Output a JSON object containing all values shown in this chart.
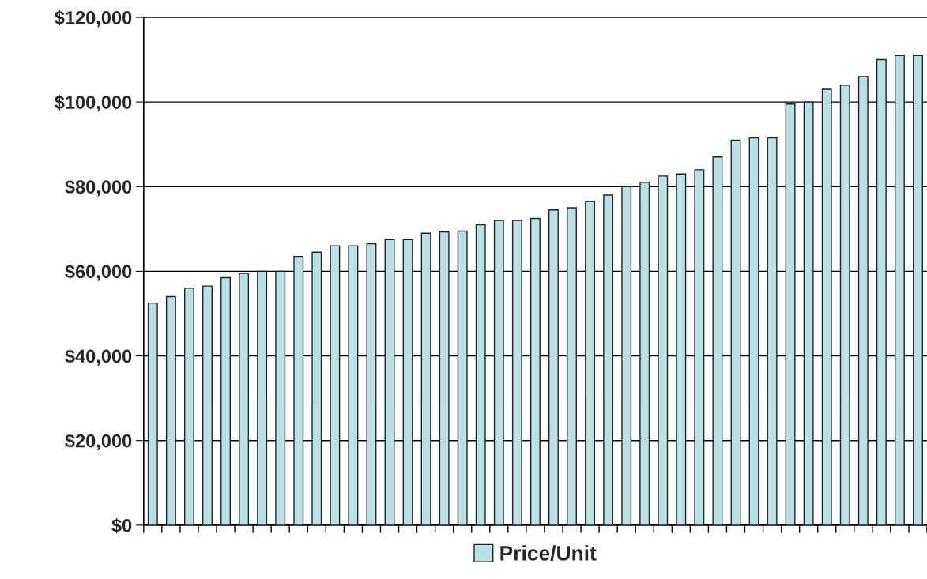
{
  "chart_data": {
    "type": "bar",
    "categories": [
      null,
      null,
      null,
      null,
      null,
      null,
      null,
      null,
      null,
      null,
      null,
      null,
      null,
      null,
      null,
      null,
      null,
      null,
      null,
      null,
      null,
      null,
      null,
      null,
      null,
      null,
      null,
      null,
      null,
      null,
      null,
      null,
      null,
      null,
      null,
      null,
      null,
      null,
      null,
      null,
      null,
      null,
      null
    ],
    "series": [
      {
        "name": "Price/Unit",
        "color": "#b9e0e3",
        "values": [
          52500,
          54000,
          56000,
          56500,
          58500,
          59500,
          60000,
          60000,
          63500,
          64500,
          66000,
          66000,
          66500,
          67500,
          67500,
          69000,
          69300,
          69500,
          71000,
          72000,
          72000,
          72500,
          74500,
          75000,
          76500,
          78000,
          80000,
          81000,
          82500,
          83000,
          84000,
          87000,
          91000,
          91500,
          91500,
          99500,
          100000,
          103000,
          104000,
          106000,
          110000,
          111000,
          111000
        ]
      }
    ],
    "ylim": [
      0,
      120000
    ],
    "yticks": [
      {
        "value": 0,
        "label": "$0"
      },
      {
        "value": 20000,
        "label": "$20,000"
      },
      {
        "value": 40000,
        "label": "$40,000"
      },
      {
        "value": 60000,
        "label": "$60,000"
      },
      {
        "value": 80000,
        "label": "$80,000"
      },
      {
        "value": 100000,
        "label": "$100,000"
      },
      {
        "value": 120000,
        "label": "$120,000"
      }
    ],
    "grid": "y",
    "legend": "bottom"
  }
}
